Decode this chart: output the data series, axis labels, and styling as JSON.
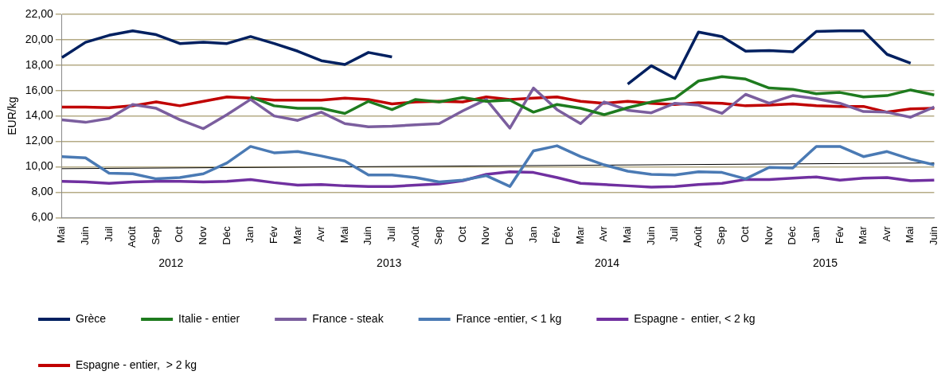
{
  "chart_data": {
    "type": "line",
    "ylabel": "EUR/kg",
    "categories": [
      "Mai",
      "Juin",
      "Juil",
      "Août",
      "Sep",
      "Oct",
      "Nov",
      "Déc",
      "Jan",
      "Fév",
      "Mar",
      "Avr",
      "Mai",
      "Juin",
      "Juil",
      "Août",
      "Sep",
      "Oct",
      "Nov",
      "Déc",
      "Jan",
      "Fév",
      "Mar",
      "Avr",
      "Mai",
      "Juin",
      "Juil",
      "Août",
      "Sep",
      "Oct",
      "Nov",
      "Déc",
      "Jan",
      "Fév",
      "Mar",
      "Avr",
      "Mai",
      "Juin"
    ],
    "ylim": [
      6,
      22
    ],
    "yticks": [
      {
        "value": 6,
        "label": "6,00"
      },
      {
        "value": 8,
        "label": "8,00"
      },
      {
        "value": 10,
        "label": "10,00"
      },
      {
        "value": 12,
        "label": "12,00"
      },
      {
        "value": 14,
        "label": "14,00"
      },
      {
        "value": 16,
        "label": "16,00"
      },
      {
        "value": 18,
        "label": "18,00"
      },
      {
        "value": 20,
        "label": "20,00"
      },
      {
        "value": 22,
        "label": "22,00"
      }
    ],
    "grid": "y",
    "legend": "bottom",
    "marker": "none",
    "annotations": [
      "2012",
      "2013",
      "2014",
      "2015"
    ],
    "series": [
      {
        "name": "Grèce",
        "color": "#002060",
        "values": [
          18.6,
          19.8,
          20.35,
          20.7,
          20.4,
          19.7,
          19.8,
          19.7,
          20.25,
          19.7,
          19.1,
          18.35,
          18.05,
          19.0,
          18.65,
          null,
          null,
          null,
          null,
          null,
          null,
          null,
          null,
          null,
          16.5,
          17.95,
          16.95,
          20.6,
          20.25,
          19.1,
          19.15,
          19.05,
          20.65,
          20.7,
          20.7,
          18.85,
          18.15,
          null
        ]
      },
      {
        "name": "Italie - entier",
        "color": "#1e7b1e",
        "values": [
          null,
          null,
          null,
          null,
          null,
          null,
          null,
          null,
          15.5,
          14.8,
          14.6,
          14.6,
          14.2,
          15.15,
          14.5,
          15.3,
          15.1,
          15.45,
          15.15,
          15.25,
          14.3,
          14.9,
          14.6,
          14.1,
          14.65,
          15.1,
          15.4,
          16.75,
          17.1,
          16.9,
          16.2,
          16.1,
          15.75,
          15.85,
          15.5,
          15.6,
          16.05,
          15.65
        ]
      },
      {
        "name": "France - steak",
        "color": "#7b5e9e",
        "values": [
          13.7,
          13.5,
          13.8,
          14.9,
          14.6,
          13.7,
          13.0,
          14.1,
          15.3,
          14.0,
          13.65,
          14.3,
          13.4,
          13.15,
          13.2,
          13.3,
          13.4,
          14.4,
          15.3,
          13.05,
          16.2,
          14.5,
          13.4,
          15.1,
          14.45,
          14.25,
          15.0,
          14.85,
          14.2,
          15.7,
          15.0,
          15.6,
          15.35,
          15.0,
          14.35,
          14.3,
          13.9,
          14.7
        ]
      },
      {
        "name": "France -entier, < 1 kg",
        "color": "#4a7ab4",
        "values": [
          10.8,
          10.7,
          9.5,
          9.45,
          9.05,
          9.15,
          9.45,
          10.3,
          11.6,
          11.1,
          11.2,
          10.85,
          10.45,
          9.35,
          9.35,
          9.15,
          8.8,
          8.95,
          9.3,
          8.45,
          11.25,
          11.65,
          10.8,
          10.15,
          9.65,
          9.4,
          9.35,
          9.6,
          9.55,
          9.05,
          9.95,
          9.9,
          11.6,
          11.6,
          10.8,
          11.2,
          10.6,
          10.15
        ]
      },
      {
        "name": "Espagne -  entier, < 2 kg",
        "color": "#7030a0",
        "values": [
          8.85,
          8.8,
          8.7,
          8.8,
          8.85,
          8.85,
          8.8,
          8.85,
          9.0,
          8.75,
          8.55,
          8.6,
          8.5,
          8.45,
          8.45,
          8.55,
          8.65,
          8.9,
          9.4,
          9.6,
          9.55,
          9.15,
          8.7,
          8.6,
          8.5,
          8.4,
          8.45,
          8.6,
          8.7,
          9.0,
          9.0,
          9.1,
          9.2,
          8.95,
          9.1,
          9.15,
          8.9,
          8.95
        ]
      },
      {
        "name": "Espagne - entier,  > 2 kg",
        "color": "#c00000",
        "values": [
          14.7,
          14.7,
          14.65,
          14.8,
          15.1,
          14.8,
          15.15,
          15.5,
          15.4,
          15.25,
          15.25,
          15.25,
          15.4,
          15.3,
          14.95,
          15.1,
          15.15,
          15.1,
          15.5,
          15.3,
          15.4,
          15.5,
          15.15,
          15.0,
          15.15,
          15.0,
          14.9,
          15.05,
          15.0,
          14.8,
          14.85,
          14.95,
          14.8,
          14.75,
          14.75,
          14.3,
          14.55,
          14.6
        ]
      },
      {
        "color": "#000000",
        "values": [
          9.85,
          null,
          null,
          null,
          null,
          null,
          null,
          null,
          null,
          null,
          null,
          null,
          null,
          null,
          null,
          null,
          null,
          null,
          null,
          null,
          null,
          null,
          null,
          null,
          null,
          null,
          null,
          null,
          null,
          null,
          null,
          null,
          null,
          null,
          null,
          null,
          null,
          10.3
        ]
      }
    ]
  }
}
